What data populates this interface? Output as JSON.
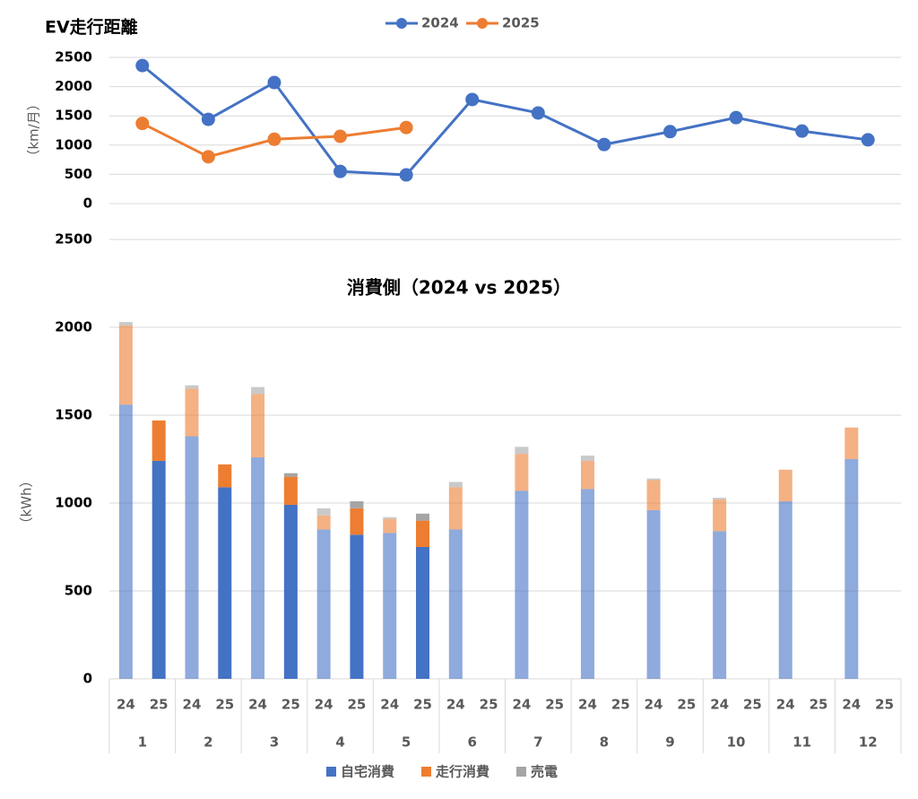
{
  "chart_data": [
    {
      "type": "line",
      "title": "EV走行距離",
      "y_label": "（km/月）",
      "annotations": [
        "2500"
      ],
      "categories": [
        null,
        null,
        null,
        null,
        null,
        null,
        null,
        null,
        null,
        null,
        null,
        null
      ],
      "series": [
        {
          "name": "2024",
          "color": "#4472c4",
          "values": [
            2360,
            1440,
            2070,
            550,
            490,
            1780,
            1550,
            1010,
            1230,
            1470,
            1240,
            1090
          ]
        },
        {
          "name": "2025",
          "color": "#ed7d31",
          "values": [
            1370,
            800,
            1100,
            1150,
            1300,
            null,
            null,
            null,
            null,
            null,
            null,
            null
          ]
        }
      ],
      "ylim": [
        0,
        2500
      ],
      "yticks": [
        0,
        500,
        1000,
        1500,
        2000,
        2500
      ],
      "grid": true,
      "legend": "top"
    },
    {
      "type": "stacked_bar",
      "title": "消費側（2024 vs 2025）",
      "y_label": "（kWh）",
      "groups": [
        "1",
        "2",
        "3",
        "4",
        "5",
        "6",
        "7",
        "8",
        "9",
        "10",
        "11",
        "12"
      ],
      "categories": [
        "24",
        "25",
        "24",
        "25",
        "24",
        "25",
        "24",
        "25",
        "24",
        "25",
        "24",
        "25",
        "24",
        "25",
        "24",
        "25",
        "24",
        "25",
        "24",
        "25",
        "24",
        "25",
        "24",
        "25"
      ],
      "series": [
        {
          "name": "自宅消費",
          "color": "#4472c4",
          "values": [
            1560,
            1240,
            1380,
            1090,
            1260,
            990,
            850,
            820,
            830,
            750,
            850,
            null,
            1070,
            null,
            1080,
            null,
            960,
            null,
            840,
            null,
            1010,
            null,
            1250,
            null
          ]
        },
        {
          "name": "走行消費",
          "color": "#ed7d31",
          "values": [
            450,
            230,
            270,
            130,
            360,
            160,
            80,
            150,
            80,
            150,
            240,
            null,
            210,
            null,
            160,
            null,
            170,
            null,
            180,
            null,
            180,
            null,
            180,
            null
          ]
        },
        {
          "name": "売電",
          "color": "#a5a5a5",
          "values": [
            20,
            0,
            20,
            0,
            40,
            20,
            40,
            40,
            10,
            40,
            30,
            null,
            40,
            null,
            30,
            null,
            10,
            null,
            10,
            null,
            0,
            null,
            0,
            null
          ]
        }
      ],
      "ylim": [
        0,
        2000
      ],
      "yticks": [
        0,
        500,
        1000,
        1500,
        2000
      ],
      "grid": true,
      "legend": "bottom"
    }
  ]
}
